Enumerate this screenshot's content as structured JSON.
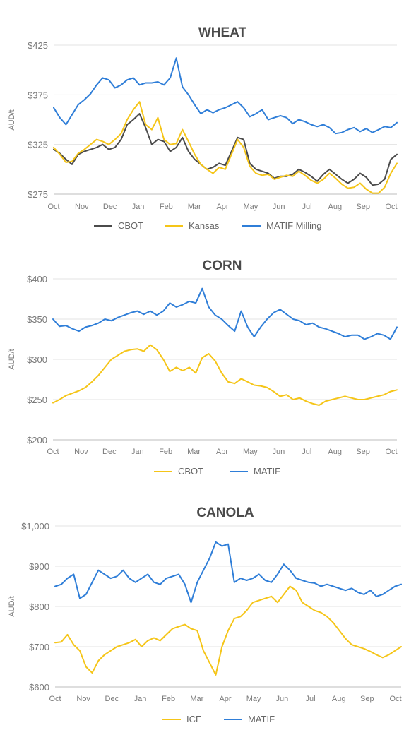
{
  "colors": {
    "black": "#4b4b4b",
    "yellow": "#f5c518",
    "blue": "#2f7ed8"
  },
  "chart_data": [
    {
      "type": "line",
      "title": "WHEAT",
      "ylabel": "AUD/t",
      "ylim": [
        275,
        425
      ],
      "yticks": [
        275,
        325,
        375,
        425
      ],
      "ytick_labels": [
        "$275",
        "$325",
        "$375",
        "$425"
      ],
      "xlabels": [
        "Oct",
        "Nov",
        "Dec",
        "Jan",
        "Feb",
        "Mar",
        "Apr",
        "May",
        "Jun",
        "Jul",
        "Aug",
        "Sep",
        "Oct"
      ],
      "grid": true,
      "legend": "bottom",
      "series": [
        {
          "name": "CBOT",
          "color": "#4b4b4b",
          "values": [
            320,
            316,
            310,
            305,
            315,
            318,
            320,
            322,
            325,
            320,
            322,
            330,
            345,
            350,
            356,
            342,
            325,
            330,
            328,
            318,
            322,
            332,
            318,
            310,
            305,
            300,
            302,
            306,
            304,
            318,
            332,
            330,
            306,
            300,
            298,
            296,
            291,
            293,
            293,
            295,
            300,
            297,
            293,
            288,
            295,
            300,
            295,
            290,
            286,
            290,
            296,
            292,
            284,
            285,
            290,
            310,
            315
          ]
        },
        {
          "name": "Kansas",
          "color": "#f5c518",
          "values": [
            322,
            315,
            307,
            308,
            316,
            320,
            325,
            330,
            328,
            325,
            330,
            336,
            350,
            360,
            368,
            345,
            340,
            352,
            330,
            325,
            326,
            340,
            328,
            315,
            305,
            300,
            296,
            302,
            300,
            315,
            330,
            322,
            303,
            296,
            294,
            295,
            290,
            292,
            294,
            293,
            298,
            294,
            289,
            286,
            290,
            296,
            291,
            285,
            281,
            282,
            286,
            280,
            276,
            276,
            282,
            296,
            306
          ]
        },
        {
          "name": "MATIF Milling",
          "color": "#2f7ed8",
          "values": [
            362,
            352,
            345,
            355,
            365,
            370,
            376,
            385,
            392,
            390,
            382,
            385,
            390,
            392,
            385,
            387,
            387,
            388,
            385,
            392,
            412,
            383,
            375,
            365,
            356,
            360,
            357,
            360,
            362,
            365,
            368,
            362,
            353,
            356,
            360,
            350,
            352,
            354,
            352,
            346,
            350,
            348,
            345,
            343,
            345,
            342,
            336,
            337,
            340,
            342,
            338,
            341,
            337,
            340,
            343,
            342,
            347
          ]
        }
      ]
    },
    {
      "type": "line",
      "title": "CORN",
      "ylabel": "AUD/t",
      "ylim": [
        200,
        400
      ],
      "yticks": [
        200,
        250,
        300,
        350,
        400
      ],
      "ytick_labels": [
        "$200",
        "$250",
        "$300",
        "$350",
        "$400"
      ],
      "xlabels": [
        "Oct",
        "Nov",
        "Dec",
        "Jan",
        "Feb",
        "Mar",
        "Apr",
        "May",
        "Jun",
        "Jul",
        "Aug",
        "Sep",
        "Oct"
      ],
      "grid": true,
      "legend": "bottom",
      "series": [
        {
          "name": "CBOT",
          "color": "#f5c518",
          "values": [
            246,
            250,
            255,
            258,
            261,
            265,
            272,
            280,
            290,
            300,
            305,
            310,
            312,
            313,
            310,
            318,
            312,
            300,
            285,
            290,
            286,
            290,
            283,
            302,
            307,
            298,
            283,
            272,
            270,
            276,
            272,
            268,
            267,
            265,
            260,
            254,
            256,
            250,
            252,
            248,
            245,
            243,
            248,
            250,
            252,
            254,
            252,
            250,
            250,
            252,
            254,
            256,
            260,
            262
          ]
        },
        {
          "name": "MATIF",
          "color": "#2f7ed8",
          "values": [
            350,
            341,
            342,
            338,
            335,
            340,
            342,
            345,
            350,
            348,
            352,
            355,
            358,
            360,
            356,
            360,
            355,
            360,
            370,
            365,
            368,
            372,
            370,
            388,
            365,
            355,
            350,
            342,
            335,
            360,
            340,
            328,
            340,
            350,
            358,
            362,
            356,
            350,
            348,
            343,
            345,
            340,
            338,
            335,
            332,
            328,
            330,
            330,
            325,
            328,
            332,
            330,
            325,
            340
          ]
        }
      ]
    },
    {
      "type": "line",
      "title": "CANOLA",
      "ylabel": "AUD/t",
      "ylim": [
        600,
        1000
      ],
      "yticks": [
        600,
        700,
        800,
        900,
        1000
      ],
      "ytick_labels": [
        "$600",
        "$700",
        "$800",
        "$900",
        "$1,000"
      ],
      "xlabels": [
        "Oct",
        "Nov",
        "Dec",
        "Jan",
        "Feb",
        "Mar",
        "Apr",
        "May",
        "Jun",
        "Jul",
        "Aug",
        "Sep",
        "Oct"
      ],
      "grid": true,
      "legend": "bottom",
      "series": [
        {
          "name": "ICE",
          "color": "#f5c518",
          "values": [
            710,
            712,
            730,
            705,
            690,
            650,
            635,
            665,
            680,
            690,
            700,
            705,
            710,
            718,
            700,
            715,
            722,
            715,
            730,
            745,
            750,
            755,
            745,
            740,
            690,
            660,
            630,
            700,
            740,
            770,
            775,
            790,
            810,
            815,
            820,
            825,
            810,
            830,
            850,
            840,
            810,
            800,
            790,
            785,
            775,
            760,
            740,
            720,
            705,
            700,
            695,
            688,
            680,
            673,
            680,
            690,
            700
          ]
        },
        {
          "name": "MATIF",
          "color": "#2f7ed8",
          "values": [
            850,
            855,
            870,
            880,
            820,
            830,
            860,
            890,
            880,
            870,
            875,
            890,
            870,
            860,
            870,
            880,
            860,
            855,
            870,
            875,
            880,
            855,
            810,
            860,
            890,
            920,
            960,
            950,
            955,
            860,
            870,
            865,
            870,
            880,
            865,
            860,
            880,
            905,
            890,
            870,
            865,
            860,
            858,
            850,
            855,
            850,
            845,
            840,
            845,
            835,
            830,
            840,
            825,
            830,
            840,
            850,
            855
          ]
        }
      ]
    }
  ]
}
